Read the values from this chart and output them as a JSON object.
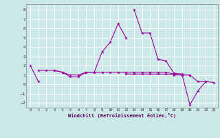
{
  "x": [
    0,
    1,
    2,
    3,
    4,
    5,
    6,
    7,
    8,
    9,
    10,
    11,
    12,
    13,
    14,
    15,
    16,
    17,
    18,
    19,
    20,
    21,
    22,
    23
  ],
  "line1": [
    2.0,
    0.3,
    null,
    1.5,
    1.3,
    0.8,
    0.8,
    1.3,
    1.3,
    3.5,
    4.5,
    6.5,
    5.0,
    null,
    null,
    null,
    null,
    null,
    null,
    null,
    null,
    null,
    null,
    null
  ],
  "line2": [
    null,
    null,
    null,
    null,
    null,
    null,
    null,
    null,
    null,
    null,
    null,
    null,
    null,
    8.0,
    5.5,
    5.5,
    2.7,
    2.5,
    1.2,
    1.1,
    -2.2,
    -0.7,
    0.3,
    null
  ],
  "line3": [
    null,
    1.5,
    1.5,
    1.5,
    1.3,
    1.0,
    1.0,
    1.3,
    1.3,
    1.3,
    1.3,
    1.3,
    1.3,
    1.3,
    1.3,
    1.3,
    1.3,
    1.3,
    1.1,
    1.0,
    1.0,
    0.3,
    0.3,
    0.2
  ],
  "line4": [
    null,
    null,
    null,
    null,
    null,
    null,
    null,
    null,
    null,
    null,
    null,
    null,
    1.1,
    1.1,
    1.1,
    1.1,
    1.1,
    1.1,
    1.0,
    1.0,
    1.0,
    null,
    null,
    null
  ],
  "xlim": [
    -0.5,
    23.5
  ],
  "ylim": [
    -2.5,
    8.6
  ],
  "yticks": [
    -2,
    -1,
    0,
    1,
    2,
    3,
    4,
    5,
    6,
    7,
    8
  ],
  "xticks": [
    0,
    1,
    2,
    3,
    4,
    5,
    6,
    7,
    8,
    9,
    10,
    11,
    12,
    13,
    14,
    15,
    16,
    17,
    18,
    19,
    20,
    21,
    22,
    23
  ],
  "xlabel": "Windchill (Refroidissement éolien,°C)",
  "line_color": "#990099",
  "bg_color": "#cce8e8",
  "grid_color": "#ffffff"
}
